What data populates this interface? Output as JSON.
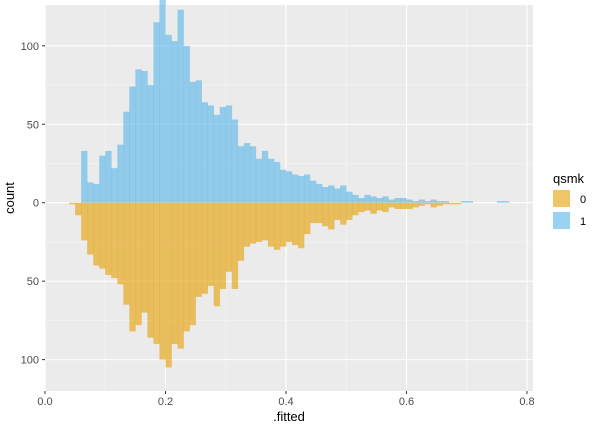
{
  "chart_data": {
    "type": "histogram-mirrored",
    "xlabel": ".fitted",
    "ylabel": "count",
    "xlim": [
      0.0,
      0.81
    ],
    "ylim": [
      -120,
      126
    ],
    "binwidth": 0.01,
    "x_ticks": [
      0.0,
      0.2,
      0.4,
      0.6,
      0.8
    ],
    "x_tick_labels": [
      "0.0",
      "0.2",
      "0.4",
      "0.6",
      "0.8"
    ],
    "y_ticks": [
      100,
      50,
      0,
      -50,
      -100
    ],
    "y_tick_labels": [
      "100",
      "50",
      "0",
      "50",
      "100"
    ],
    "grid": true,
    "legend": {
      "title": "qsmk",
      "placement": "right",
      "items": [
        {
          "label": "0",
          "color": "#E69F00"
        },
        {
          "label": "1",
          "color": "#56B4E9"
        }
      ]
    },
    "series": [
      {
        "name": "1",
        "direction": "up",
        "color": "#56B4E9",
        "bin_starts": [
          0.06,
          0.07,
          0.08,
          0.09,
          0.1,
          0.11,
          0.12,
          0.13,
          0.14,
          0.15,
          0.16,
          0.17,
          0.18,
          0.19,
          0.2,
          0.21,
          0.22,
          0.23,
          0.24,
          0.25,
          0.26,
          0.27,
          0.28,
          0.29,
          0.3,
          0.31,
          0.32,
          0.33,
          0.34,
          0.35,
          0.36,
          0.37,
          0.38,
          0.39,
          0.4,
          0.41,
          0.42,
          0.43,
          0.44,
          0.45,
          0.46,
          0.47,
          0.48,
          0.49,
          0.5,
          0.51,
          0.52,
          0.53,
          0.54,
          0.55,
          0.56,
          0.57,
          0.58,
          0.59,
          0.6,
          0.61,
          0.62,
          0.63,
          0.64,
          0.65,
          0.66,
          0.67,
          0.68,
          0.69,
          0.7,
          0.71,
          0.72,
          0.73,
          0.74,
          0.75,
          0.76
        ],
        "values": [
          33,
          13,
          12,
          30,
          33,
          22,
          37,
          58,
          74,
          85,
          84,
          75,
          115,
          138,
          107,
          103,
          123,
          100,
          77,
          78,
          64,
          62,
          56,
          61,
          62,
          53,
          36,
          38,
          36,
          28,
          33,
          28,
          26,
          21,
          20,
          18,
          17,
          18,
          14,
          12,
          10,
          11,
          9,
          11,
          7,
          5,
          3,
          5,
          4,
          3,
          4,
          2,
          3,
          3,
          2,
          1,
          2,
          1,
          2,
          1,
          1,
          0,
          0,
          1,
          1,
          0,
          0,
          0,
          0,
          1,
          1
        ]
      },
      {
        "name": "0",
        "direction": "down",
        "color": "#E69F00",
        "bin_starts": [
          0.04,
          0.05,
          0.06,
          0.07,
          0.08,
          0.09,
          0.1,
          0.11,
          0.12,
          0.13,
          0.14,
          0.15,
          0.16,
          0.17,
          0.18,
          0.19,
          0.2,
          0.21,
          0.22,
          0.23,
          0.24,
          0.25,
          0.26,
          0.27,
          0.28,
          0.29,
          0.3,
          0.31,
          0.32,
          0.33,
          0.34,
          0.35,
          0.36,
          0.37,
          0.38,
          0.39,
          0.4,
          0.41,
          0.42,
          0.43,
          0.44,
          0.45,
          0.46,
          0.47,
          0.48,
          0.49,
          0.5,
          0.51,
          0.52,
          0.53,
          0.54,
          0.55,
          0.56,
          0.57,
          0.58,
          0.59,
          0.6,
          0.61,
          0.62,
          0.63,
          0.64,
          0.65,
          0.66,
          0.67,
          0.68
        ],
        "values": [
          1,
          8,
          24,
          33,
          40,
          42,
          46,
          48,
          52,
          65,
          82,
          78,
          70,
          86,
          90,
          100,
          105,
          90,
          93,
          82,
          78,
          60,
          58,
          53,
          66,
          55,
          44,
          55,
          37,
          28,
          26,
          25,
          24,
          28,
          30,
          28,
          25,
          27,
          29,
          20,
          13,
          13,
          15,
          17,
          11,
          14,
          11,
          8,
          6,
          5,
          7,
          5,
          6,
          3,
          4,
          4,
          4,
          3,
          2,
          1,
          3,
          2,
          1,
          1,
          1
        ]
      }
    ]
  }
}
